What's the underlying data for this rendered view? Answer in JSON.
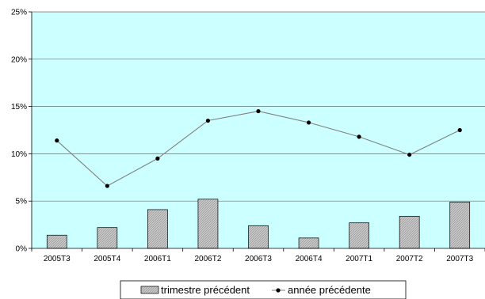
{
  "chart_data": {
    "type": "bar",
    "categories": [
      "2005T3",
      "2005T4",
      "2006T1",
      "2006T2",
      "2006T3",
      "2006T4",
      "2007T1",
      "2007T2",
      "2007T3"
    ],
    "series": [
      {
        "name": "trimestre précédent",
        "type": "bar",
        "values": [
          1.4,
          2.2,
          4.1,
          5.2,
          2.4,
          1.1,
          2.7,
          3.4,
          4.9
        ]
      },
      {
        "name": "année précédente",
        "type": "line",
        "values": [
          11.4,
          6.6,
          9.5,
          13.5,
          14.5,
          13.3,
          11.8,
          9.9,
          12.5
        ]
      }
    ],
    "yticks": [
      "0%",
      "5%",
      "10%",
      "15%",
      "20%",
      "25%"
    ],
    "ylim": [
      0,
      25
    ],
    "grid": true,
    "legend_position": "bottom",
    "colors": {
      "plot_background": "#ccffff",
      "bar_fill": "#c0c0c0",
      "line": "#808080",
      "marker": "#000000",
      "grid": "#000000"
    }
  }
}
